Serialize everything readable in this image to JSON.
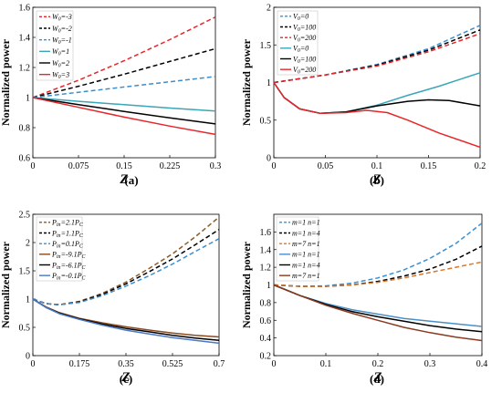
{
  "chart_data": [
    {
      "type": "line",
      "panel_label": "(a)",
      "xlabel": "Z",
      "ylabel": "Normalized power",
      "xlim": [
        0,
        0.3
      ],
      "ylim": [
        0.6,
        1.6
      ],
      "xticks": [
        "0",
        "0.075",
        "0.15",
        "0.225",
        "0.3"
      ],
      "yticks": [
        "0.6",
        "0.8",
        "1",
        "1.2",
        "1.4",
        "1.6"
      ],
      "legend_position": "top-left",
      "series": [
        {
          "name": "W0=-3",
          "legend_main": "W",
          "legend_sub": "0",
          "legend_rest": "=-3",
          "color": "#e8262a",
          "dash": true,
          "x": [
            0,
            0.075,
            0.15,
            0.225,
            0.3
          ],
          "y": [
            1.0,
            1.115,
            1.245,
            1.385,
            1.535
          ]
        },
        {
          "name": "W0=-2",
          "legend_main": "W",
          "legend_sub": "0",
          "legend_rest": "=-2",
          "color": "#000000",
          "dash": true,
          "x": [
            0,
            0.075,
            0.15,
            0.225,
            0.3
          ],
          "y": [
            1.0,
            1.075,
            1.155,
            1.24,
            1.325
          ]
        },
        {
          "name": "W0=-1",
          "legend_main": "W",
          "legend_sub": "0",
          "legend_rest": "=-1",
          "color": "#3b8fd0",
          "dash": true,
          "x": [
            0,
            0.075,
            0.15,
            0.225,
            0.3
          ],
          "y": [
            1.0,
            1.035,
            1.07,
            1.105,
            1.14
          ]
        },
        {
          "name": "W0=1",
          "legend_main": "W",
          "legend_sub": "0",
          "legend_rest": "=1",
          "color": "#3aa6b8",
          "dash": false,
          "x": [
            0,
            0.075,
            0.15,
            0.225,
            0.3
          ],
          "y": [
            1.0,
            0.975,
            0.953,
            0.93,
            0.91
          ]
        },
        {
          "name": "W0=2",
          "legend_main": "W",
          "legend_sub": "0",
          "legend_rest": "=2",
          "color": "#000000",
          "dash": false,
          "x": [
            0,
            0.075,
            0.15,
            0.225,
            0.3
          ],
          "y": [
            1.0,
            0.953,
            0.908,
            0.865,
            0.825
          ]
        },
        {
          "name": "W0=3",
          "legend_main": "W",
          "legend_sub": "0",
          "legend_rest": "=3",
          "color": "#e8262a",
          "dash": false,
          "x": [
            0,
            0.075,
            0.15,
            0.225,
            0.3
          ],
          "y": [
            1.0,
            0.935,
            0.87,
            0.81,
            0.755
          ]
        }
      ]
    },
    {
      "type": "line",
      "panel_label": "(b)",
      "xlabel": "Z",
      "ylabel": "Normalized power",
      "xlim": [
        0,
        0.2
      ],
      "ylim": [
        0,
        2
      ],
      "xticks": [
        "0",
        "0.05",
        "0.1",
        "0.15",
        "0.2"
      ],
      "yticks": [
        "0",
        "0.5",
        "1",
        "1.5",
        "2"
      ],
      "legend_position": "top-left",
      "series": [
        {
          "name": "V0=0 (dashed)",
          "legend_main": "V",
          "legend_sub": "0",
          "legend_rest": "=0",
          "color": "#3b8fd0",
          "dash": true,
          "x": [
            0,
            0.05,
            0.1,
            0.15,
            0.2
          ],
          "y": [
            1.0,
            1.1,
            1.24,
            1.45,
            1.76
          ]
        },
        {
          "name": "V0=100 (dashed)",
          "legend_main": "V",
          "legend_sub": "0",
          "legend_rest": "=100",
          "color": "#000000",
          "dash": true,
          "x": [
            0,
            0.05,
            0.1,
            0.15,
            0.2
          ],
          "y": [
            1.0,
            1.1,
            1.23,
            1.43,
            1.7
          ]
        },
        {
          "name": "V0=200 (dashed)",
          "legend_main": "V",
          "legend_sub": "0",
          "legend_rest": "=200",
          "color": "#e8262a",
          "dash": true,
          "x": [
            0,
            0.05,
            0.1,
            0.15,
            0.2
          ],
          "y": [
            1.0,
            1.1,
            1.22,
            1.41,
            1.65
          ]
        },
        {
          "name": "V0=0 (solid)",
          "legend_main": "V",
          "legend_sub": "0",
          "legend_rest": "=0",
          "color": "#3aa6b8",
          "dash": false,
          "x": [
            0,
            0.01,
            0.025,
            0.045,
            0.07,
            0.1,
            0.13,
            0.16,
            0.2
          ],
          "y": [
            1.0,
            0.8,
            0.65,
            0.59,
            0.61,
            0.7,
            0.83,
            0.95,
            1.13
          ]
        },
        {
          "name": "V0=100 (solid)",
          "legend_main": "V",
          "legend_sub": "0",
          "legend_rest": "=100",
          "color": "#000000",
          "dash": false,
          "x": [
            0,
            0.01,
            0.025,
            0.045,
            0.07,
            0.1,
            0.13,
            0.15,
            0.17,
            0.2
          ],
          "y": [
            1.0,
            0.8,
            0.65,
            0.59,
            0.61,
            0.69,
            0.75,
            0.77,
            0.76,
            0.69
          ]
        },
        {
          "name": "V0=200 (solid)",
          "legend_main": "V",
          "legend_sub": "0",
          "legend_rest": "=200",
          "color": "#e8262a",
          "dash": false,
          "x": [
            0,
            0.01,
            0.025,
            0.045,
            0.07,
            0.09,
            0.11,
            0.13,
            0.16,
            0.2
          ],
          "y": [
            1.0,
            0.8,
            0.65,
            0.59,
            0.6,
            0.63,
            0.6,
            0.5,
            0.33,
            0.14
          ]
        }
      ]
    },
    {
      "type": "line",
      "panel_label": "(c)",
      "xlabel": "Z",
      "ylabel": "Normalized power",
      "xlim": [
        0,
        0.7
      ],
      "ylim": [
        0,
        2.5
      ],
      "xticks": [
        "0",
        "0.175",
        "0.35",
        "0.525",
        "0.7"
      ],
      "yticks": [
        "0",
        "0.5",
        "1",
        "1.5",
        "2",
        "2.5"
      ],
      "legend_position": "top-left",
      "series": [
        {
          "name": "Pin=2.1PC",
          "legend_main": "P",
          "legend_sub": "in",
          "legend_rest": "=2.1P",
          "legend_sub2": "C",
          "color": "#8a5a2b",
          "dash": true,
          "x": [
            0,
            0.05,
            0.1,
            0.175,
            0.26,
            0.35,
            0.44,
            0.525,
            0.61,
            0.7
          ],
          "y": [
            1.0,
            0.92,
            0.9,
            0.96,
            1.1,
            1.3,
            1.55,
            1.8,
            2.1,
            2.45
          ]
        },
        {
          "name": "Pin=1.1PC",
          "legend_main": "P",
          "legend_sub": "in",
          "legend_rest": "=1.1P",
          "legend_sub2": "C",
          "color": "#000000",
          "dash": true,
          "x": [
            0,
            0.05,
            0.1,
            0.175,
            0.26,
            0.35,
            0.44,
            0.525,
            0.61,
            0.7
          ],
          "y": [
            1.0,
            0.92,
            0.9,
            0.95,
            1.08,
            1.27,
            1.49,
            1.71,
            1.96,
            2.23
          ]
        },
        {
          "name": "Pin=0.1PC (dashed)",
          "legend_main": "P",
          "legend_sub": "in",
          "legend_rest": "=0.1P",
          "legend_sub2": "C",
          "color": "#3b8fd0",
          "dash": true,
          "x": [
            0,
            0.05,
            0.1,
            0.175,
            0.26,
            0.35,
            0.44,
            0.525,
            0.61,
            0.7
          ],
          "y": [
            1.0,
            0.92,
            0.9,
            0.94,
            1.06,
            1.23,
            1.42,
            1.62,
            1.84,
            2.07
          ]
        },
        {
          "name": "Pin=-9.1PC",
          "legend_main": "P",
          "legend_sub": "in",
          "legend_rest": "=-9.1P",
          "legend_sub2": "C",
          "color": "#8a4a1f",
          "dash": false,
          "x": [
            0,
            0.05,
            0.1,
            0.175,
            0.26,
            0.35,
            0.44,
            0.525,
            0.61,
            0.7
          ],
          "y": [
            1.0,
            0.86,
            0.76,
            0.66,
            0.58,
            0.51,
            0.45,
            0.4,
            0.36,
            0.33
          ]
        },
        {
          "name": "Pin=-6.1PC",
          "legend_main": "P",
          "legend_sub": "in",
          "legend_rest": "=-6.1P",
          "legend_sub2": "C",
          "color": "#000000",
          "dash": false,
          "x": [
            0,
            0.05,
            0.1,
            0.175,
            0.26,
            0.35,
            0.44,
            0.525,
            0.61,
            0.7
          ],
          "y": [
            1.0,
            0.85,
            0.75,
            0.65,
            0.56,
            0.48,
            0.42,
            0.36,
            0.31,
            0.27
          ]
        },
        {
          "name": "Pin=-0.1PC (solid)",
          "legend_main": "P",
          "legend_sub": "in",
          "legend_rest": "=-0.1P",
          "legend_sub2": "C",
          "color": "#4a78c8",
          "dash": false,
          "x": [
            0,
            0.05,
            0.1,
            0.175,
            0.26,
            0.35,
            0.44,
            0.525,
            0.61,
            0.7
          ],
          "y": [
            1.0,
            0.85,
            0.74,
            0.64,
            0.54,
            0.45,
            0.38,
            0.32,
            0.27,
            0.22
          ]
        }
      ]
    },
    {
      "type": "line",
      "panel_label": "(d)",
      "xlabel": "Z",
      "ylabel": "Normalized power",
      "xlim": [
        0,
        0.4
      ],
      "ylim": [
        0.2,
        1.8
      ],
      "xticks": [
        "0",
        "0.1",
        "0.2",
        "0.3",
        "0.4"
      ],
      "yticks": [
        "0.2",
        "0.4",
        "0.6",
        "0.8",
        "1",
        "1.2",
        "1.4",
        "1.6"
      ],
      "legend_position": "top-left",
      "series": [
        {
          "name": "m=1 n=1 (dashed)",
          "legend_main": "m",
          "legend_sub": "",
          "legend_rest": "=1 n=1",
          "color": "#3b8fd0",
          "dash": true,
          "x": [
            0,
            0.05,
            0.1,
            0.15,
            0.2,
            0.25,
            0.3,
            0.35,
            0.4
          ],
          "y": [
            1.0,
            0.985,
            0.99,
            1.02,
            1.08,
            1.17,
            1.3,
            1.47,
            1.7
          ]
        },
        {
          "name": "m=1 n=4 (dashed)",
          "legend_main": "m",
          "legend_sub": "",
          "legend_rest": "=1 n=4",
          "color": "#000000",
          "dash": true,
          "x": [
            0,
            0.05,
            0.1,
            0.15,
            0.2,
            0.25,
            0.3,
            0.35,
            0.4
          ],
          "y": [
            1.0,
            0.985,
            0.985,
            1.0,
            1.04,
            1.1,
            1.18,
            1.29,
            1.44
          ]
        },
        {
          "name": "m=7 n=1 (dashed)",
          "legend_main": "m",
          "legend_sub": "",
          "legend_rest": "=7 n=1",
          "color": "#d9772a",
          "dash": true,
          "x": [
            0,
            0.05,
            0.1,
            0.15,
            0.2,
            0.25,
            0.3,
            0.35,
            0.4
          ],
          "y": [
            1.0,
            0.985,
            0.985,
            1.0,
            1.03,
            1.08,
            1.14,
            1.2,
            1.26
          ]
        },
        {
          "name": "m=1 n=1 (solid)",
          "legend_main": "m",
          "legend_sub": "",
          "legend_rest": "=1 n=1",
          "color": "#4a90c8",
          "dash": false,
          "x": [
            0,
            0.05,
            0.1,
            0.15,
            0.2,
            0.25,
            0.3,
            0.35,
            0.4
          ],
          "y": [
            1.0,
            0.88,
            0.79,
            0.72,
            0.67,
            0.62,
            0.59,
            0.56,
            0.53
          ]
        },
        {
          "name": "m=1 n=4 (solid)",
          "legend_main": "m",
          "legend_sub": "",
          "legend_rest": "=1 n=4",
          "color": "#000000",
          "dash": false,
          "x": [
            0,
            0.05,
            0.1,
            0.15,
            0.2,
            0.25,
            0.3,
            0.35,
            0.4
          ],
          "y": [
            1.0,
            0.88,
            0.78,
            0.7,
            0.64,
            0.59,
            0.54,
            0.5,
            0.47
          ]
        },
        {
          "name": "m=7 n=1 (solid)",
          "legend_main": "m",
          "legend_sub": "",
          "legend_rest": "=7 n=1",
          "color": "#8a3a1f",
          "dash": false,
          "x": [
            0,
            0.05,
            0.1,
            0.15,
            0.2,
            0.25,
            0.3,
            0.35,
            0.4
          ],
          "y": [
            1.0,
            0.88,
            0.77,
            0.68,
            0.6,
            0.52,
            0.46,
            0.41,
            0.37
          ]
        }
      ]
    }
  ]
}
